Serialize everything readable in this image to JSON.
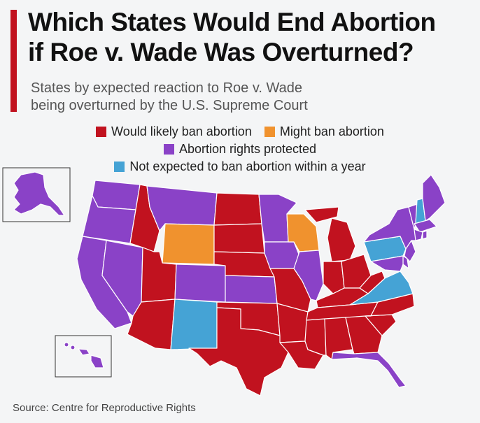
{
  "title": {
    "line1": "Which States Would End Abortion",
    "line2": "if Roe v. Wade Was Overturned?"
  },
  "subtitle": {
    "line1": "States by expected reaction to Roe v. Wade",
    "line2": "being overturned by the U.S. Supreme Court"
  },
  "colors": {
    "ban": "#c1121f",
    "might": "#f0922e",
    "protected": "#8a42c7",
    "not_expected": "#45a3d5",
    "accent": "#c1121f",
    "border": "#ffffff"
  },
  "legend": [
    {
      "key": "ban",
      "label": "Would likely ban abortion"
    },
    {
      "key": "might",
      "label": "Might ban abortion"
    },
    {
      "key": "protected",
      "label": "Abortion rights protected"
    },
    {
      "key": "not_expected",
      "label": "Not expected to ban abortion within a year"
    }
  ],
  "states": {
    "ban": [
      "ID",
      "UT",
      "AZ",
      "ND",
      "SD",
      "NE",
      "OK",
      "TX",
      "MO",
      "AR",
      "LA",
      "MS",
      "AL",
      "TN",
      "KY",
      "GA",
      "SC",
      "NC",
      "IN",
      "OH",
      "MI",
      "WV",
      "FL (partial)"
    ],
    "might": [
      "WY",
      "WI"
    ],
    "protected": [
      "WA",
      "OR",
      "CA",
      "NV",
      "MT",
      "CO",
      "KS",
      "MN",
      "IA",
      "IL",
      "NY",
      "VT",
      "ME",
      "MA",
      "CT",
      "RI",
      "NJ",
      "DE",
      "MD",
      "FL",
      "AK",
      "HI"
    ],
    "not_expected": [
      "NM",
      "PA",
      "VA",
      "NH"
    ]
  },
  "source": "Source: Centre for Reproductive Rights"
}
